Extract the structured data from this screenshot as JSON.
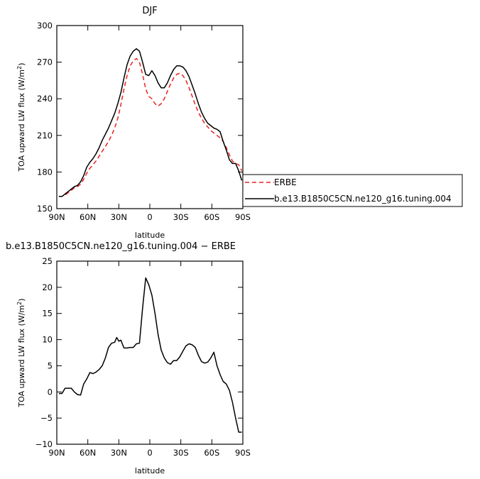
{
  "chart_data": [
    {
      "type": "line",
      "title": "DJF",
      "xlabel": "latitude",
      "ylabel": "TOA upward LW flux (W/m²)",
      "ylim": [
        150,
        300
      ],
      "xlim": [
        90,
        -90
      ],
      "xticks": [
        90,
        60,
        30,
        0,
        -30,
        -60,
        -90
      ],
      "xtick_labels": [
        "90N",
        "60N",
        "30N",
        "0",
        "30S",
        "60S",
        "90S"
      ],
      "yticks": [
        150,
        180,
        210,
        240,
        270,
        300
      ],
      "ytick_labels": [
        "150",
        "180",
        "210",
        "240",
        "270",
        "300"
      ],
      "legend": "outside-right",
      "series": [
        {
          "name": "ERBE",
          "color": "#e8231f",
          "dash": "dashed",
          "x": [
            88,
            85,
            82,
            79,
            76,
            73,
            70,
            67,
            64,
            61,
            58,
            55,
            52,
            49,
            46,
            43,
            40,
            37,
            34,
            31,
            28,
            25,
            22,
            19,
            16,
            13,
            10,
            7,
            4,
            1,
            -2,
            -5,
            -8,
            -11,
            -14,
            -17,
            -20,
            -23,
            -26,
            -29,
            -32,
            -35,
            -38,
            -41,
            -44,
            -47,
            -50,
            -53,
            -56,
            -59,
            -62,
            -65,
            -68,
            -71,
            -74,
            -77,
            -80,
            -83,
            -86,
            -89
          ],
          "y": [
            160,
            160,
            161,
            163,
            165,
            167,
            168,
            170,
            174,
            179,
            183,
            186,
            189,
            193,
            197,
            201,
            205,
            210,
            216,
            224,
            235,
            248,
            259,
            267,
            271,
            273,
            270,
            260,
            248,
            242,
            240,
            236,
            234,
            236,
            240,
            246,
            252,
            257,
            260,
            261,
            259,
            255,
            249,
            242,
            235,
            229,
            224,
            220,
            217,
            214,
            212,
            210,
            208,
            205,
            200,
            194,
            189,
            187,
            186,
            181
          ]
        },
        {
          "name": "b.e13.B1850C5CN.ne120_g16.tuning.004",
          "color": "#000000",
          "dash": "solid",
          "x": [
            88,
            85,
            82,
            79,
            76,
            73,
            70,
            67,
            64,
            61,
            58,
            55,
            52,
            49,
            46,
            43,
            40,
            37,
            34,
            31,
            28,
            25,
            22,
            19,
            16,
            13,
            10,
            7,
            4,
            1,
            -2,
            -5,
            -8,
            -11,
            -14,
            -17,
            -20,
            -23,
            -26,
            -29,
            -32,
            -35,
            -38,
            -41,
            -44,
            -47,
            -50,
            -53,
            -56,
            -59,
            -62,
            -65,
            -68,
            -71,
            -74,
            -77,
            -80,
            -83,
            -86,
            -89
          ],
          "y": [
            160,
            160,
            162,
            164,
            166,
            168,
            169,
            172,
            177,
            184,
            188,
            191,
            195,
            200,
            206,
            211,
            216,
            222,
            228,
            236,
            245,
            257,
            268,
            275,
            279,
            281,
            279,
            270,
            260,
            259,
            263,
            259,
            253,
            249,
            249,
            253,
            259,
            264,
            267,
            267,
            266,
            263,
            258,
            251,
            244,
            236,
            229,
            224,
            220,
            218,
            216,
            215,
            213,
            205,
            198,
            190,
            187,
            187,
            181,
            173
          ]
        }
      ]
    },
    {
      "type": "line",
      "title": "b.e13.B1850C5CN.ne120_g16.tuning.004 − ERBE",
      "xlabel": "latitude",
      "ylabel": "TOA upward LW flux (W/m²)",
      "ylim": [
        -10,
        25
      ],
      "xlim": [
        90,
        -90
      ],
      "xticks": [
        90,
        60,
        30,
        0,
        -30,
        -60,
        -90
      ],
      "xtick_labels": [
        "90N",
        "60N",
        "30N",
        "0",
        "30S",
        "60S",
        "90S"
      ],
      "yticks": [
        -10,
        -5,
        0,
        5,
        10,
        15,
        20,
        25
      ],
      "ytick_labels": [
        "−10",
        "−5",
        "0",
        "5",
        "10",
        "15",
        "20",
        "25"
      ],
      "series": [
        {
          "name": "",
          "color": "#000000",
          "dash": "solid",
          "x": [
            88,
            85,
            82,
            79,
            76,
            73,
            70,
            67,
            64,
            61,
            58,
            55,
            52,
            49,
            46,
            43,
            40,
            37,
            34,
            32,
            30,
            28,
            25,
            22,
            19,
            16,
            13,
            10,
            7,
            4,
            1,
            -2,
            -5,
            -8,
            -11,
            -14,
            -17,
            -20,
            -23,
            -26,
            -29,
            -32,
            -35,
            -38,
            -41,
            -44,
            -47,
            -50,
            -53,
            -56,
            -59,
            -62,
            -65,
            -68,
            -71,
            -74,
            -77,
            -80,
            -83,
            -86,
            -89
          ],
          "y": [
            -0.3,
            -0.3,
            0.7,
            0.7,
            0.7,
            0.0,
            -0.5,
            -0.6,
            1.5,
            2.5,
            3.7,
            3.5,
            3.8,
            4.3,
            5.0,
            6.5,
            8.5,
            9.3,
            9.5,
            10.4,
            9.7,
            9.9,
            8.4,
            8.4,
            8.5,
            8.5,
            9.2,
            9.3,
            16.0,
            21.8,
            20.5,
            18.5,
            15.0,
            11.0,
            8.0,
            6.5,
            5.6,
            5.3,
            6.0,
            6.0,
            6.7,
            7.8,
            8.8,
            9.2,
            9.0,
            8.5,
            7.0,
            5.8,
            5.5,
            5.7,
            6.5,
            7.6,
            5.0,
            3.3,
            2.0,
            1.5,
            0.3,
            -2.0,
            -5.0,
            -7.7,
            -7.7
          ]
        }
      ]
    }
  ]
}
